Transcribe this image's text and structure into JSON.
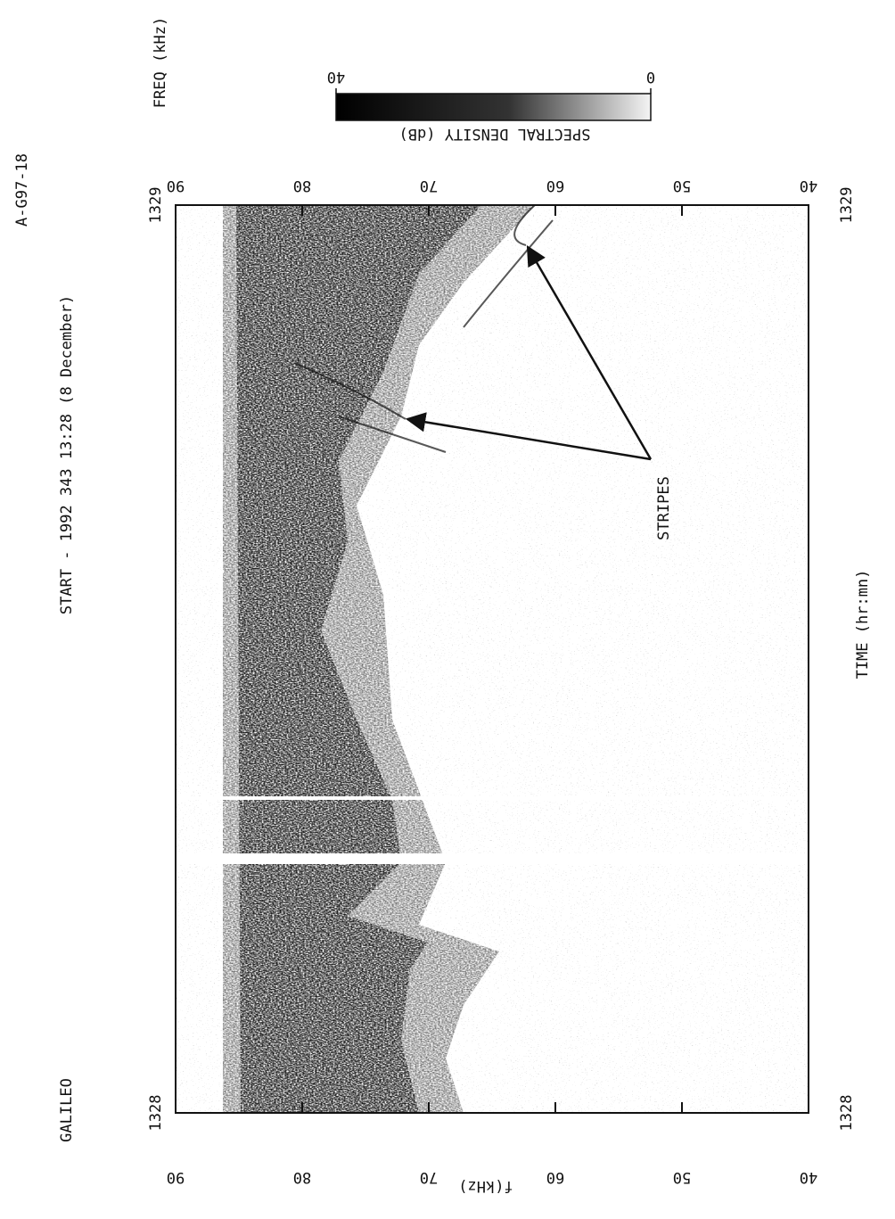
{
  "chart_data": {
    "type": "spectrogram",
    "title": "START - 1992 343 13:28 (8 December)",
    "spacecraft": "GALILEO",
    "id": "A-G97-18",
    "xlabel": "TIME (hr:mn)",
    "ylabel": "f(kHz)",
    "y2label": "FREQ (kHz)",
    "xlim": [
      0,
      1
    ],
    "xticks": [
      {
        "value": 0,
        "label": "1328"
      },
      {
        "value": 1,
        "label": "1329"
      }
    ],
    "ylim": [
      40,
      90
    ],
    "yticks": [
      40,
      50,
      60,
      70,
      80,
      90
    ],
    "colorbar": {
      "label": "SPECTRAL DENSITY (dB)",
      "lim": [
        40,
        0
      ],
      "ticks": [
        40,
        0
      ]
    },
    "annotations": [
      {
        "text": "STRIPES"
      }
    ]
  }
}
